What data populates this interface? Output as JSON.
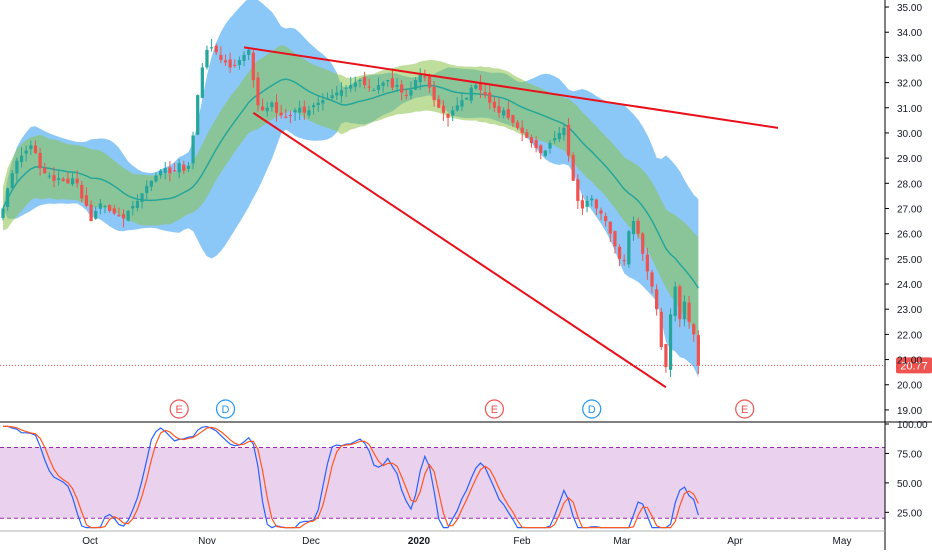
{
  "chart_data": [
    {
      "type": "candlestick",
      "xlabel": "",
      "ylabel": "",
      "ylim": [
        18.6,
        35.2
      ],
      "x_ticks": [
        "Oct",
        "Nov",
        "Dec",
        "2020",
        "Feb",
        "Mar",
        "Apr",
        "May"
      ],
      "y_ticks": [
        "19.00",
        "20.00",
        "21.00",
        "22.00",
        "23.00",
        "24.00",
        "25.00",
        "26.00",
        "27.00",
        "28.00",
        "29.00",
        "30.00",
        "31.00",
        "32.00",
        "33.00",
        "34.00",
        "35.00"
      ],
      "last_price_label": "20.77",
      "last_price": 20.77,
      "colors": {
        "up": "#26a69a",
        "down": "#ef5350",
        "bb_band": "#64b5f6",
        "kc_band": "#8bc34a",
        "trendline": "#e8101a",
        "price_line": "#ef5350"
      },
      "close": [
        27.0,
        27.8,
        28.4,
        28.9,
        29.1,
        29.3,
        29.5,
        29.2,
        28.6,
        28.4,
        28.3,
        28.1,
        28.2,
        28.1,
        28.0,
        28.2,
        28.0,
        27.4,
        27.1,
        26.5,
        26.9,
        27.2,
        27.1,
        26.9,
        26.8,
        26.7,
        26.6,
        26.9,
        27.1,
        27.3,
        27.6,
        27.9,
        28.1,
        28.3,
        28.5,
        28.6,
        28.4,
        28.5,
        28.8,
        28.5,
        28.7,
        29.9,
        31.5,
        32.6,
        33.3,
        33.4,
        33.2,
        32.9,
        32.8,
        32.6,
        32.7,
        32.9,
        33.1,
        33.3,
        32.1,
        31.1,
        30.9,
        31.0,
        31.2,
        30.8,
        30.7,
        30.6,
        30.7,
        30.9,
        31.0,
        30.8,
        30.9,
        31.1,
        31.2,
        31.3,
        31.4,
        31.5,
        31.6,
        31.7,
        31.8,
        31.9,
        32.0,
        32.1,
        31.9,
        31.8,
        31.7,
        31.9,
        32.0,
        32.1,
        31.8,
        31.9,
        31.6,
        31.5,
        31.7,
        32.1,
        32.3,
        32.2,
        31.8,
        31.3,
        31.0,
        30.8,
        30.6,
        30.9,
        31.1,
        31.3,
        31.4,
        31.8,
        31.9,
        31.7,
        31.5,
        31.2,
        31.0,
        30.8,
        30.9,
        30.6,
        30.4,
        30.2,
        30.0,
        29.8,
        29.6,
        29.4,
        29.2,
        29.3,
        29.6,
        29.8,
        30.0,
        30.2,
        29.1,
        28.1,
        27.3,
        27.0,
        27.3,
        27.4,
        27.0,
        26.8,
        26.5,
        26.0,
        25.5,
        25.0,
        24.9,
        26.1,
        26.5,
        26.0,
        25.2,
        24.5,
        23.9,
        23.0,
        21.5,
        20.7,
        22.8,
        23.9,
        22.6,
        23.3,
        22.5,
        22.0,
        20.77
      ],
      "indicator": {
        "type": "stochastic",
        "ylim": [
          10,
          100
        ],
        "y_ticks": [
          "25.00",
          "50.00",
          "75.00",
          "100.00"
        ],
        "band": [
          20,
          80
        ],
        "colors": {
          "k": "#2962ff",
          "d": "#ff5722",
          "band_fill": "#e1bee7",
          "band_line": "#9c27b0"
        }
      },
      "event_markers": [
        {
          "label": "E",
          "bar": 38,
          "color": "#ef5350"
        },
        {
          "label": "D",
          "bar": 48,
          "color": "#2196f3"
        },
        {
          "label": "E",
          "bar": 106,
          "color": "#ef5350"
        },
        {
          "label": "D",
          "bar": 127,
          "color": "#2196f3"
        },
        {
          "label": "E",
          "bar": 160,
          "color": "#ef5350"
        }
      ]
    }
  ]
}
